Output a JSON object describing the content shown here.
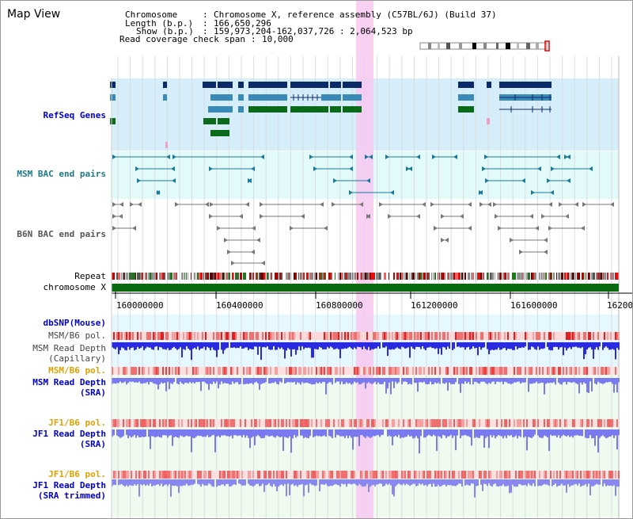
{
  "title": "Map View",
  "header": {
    "chromosome_key": "Chromosome",
    "chromosome_val": "Chromosome X, reference assembly (C57BL/6J) (Build 37)",
    "length_key": "Length (b.p.)",
    "length_val": "166,650,296",
    "show_key": "Show (b.p.)",
    "show_val": "159,973,204-162,037,726 : 2,064,523 bp",
    "coverage_key": "Read coverage check span",
    "coverage_val": "10,000"
  },
  "tracks": {
    "refseq": "RefSeq Genes",
    "msm_bac": "MSM BAC end pairs",
    "b6n_bac": "B6N BAC end pairs",
    "repeat": "Repeat",
    "chromosome": "chromosome X",
    "dbsnp": "dbSNP(Mouse)",
    "msm_b6_pol_1": "MSM/B6 pol.",
    "msm_read_depth_cap_1": "MSM Read Depth",
    "msm_read_depth_cap_2": "(Capillary)",
    "msm_b6_pol_2": "MSM/B6 pol.",
    "msm_read_depth_sra_1": "MSM Read Depth",
    "msm_read_depth_sra_2": "(SRA)",
    "jf1_b6_pol_1": "JF1/B6 pol.",
    "jf1_read_depth_sra_1": "JF1 Read Depth",
    "jf1_read_depth_sra_2": "(SRA)",
    "jf1_b6_pol_2": "JF1/B6 pol.",
    "jf1_read_depth_trim_1": "JF1 Read Depth",
    "jf1_read_depth_trim_2": "(SRA trimmed)"
  },
  "axis": {
    "ticks": [
      "160000000",
      "160400000",
      "160800000",
      "161200000",
      "161600000",
      "16200"
    ]
  },
  "colors": {
    "refseq_bg": "#d6eefa",
    "msm_bac_bg": "#e3fafa",
    "snp_bg": "#e6f8ff",
    "depth_bg": "#eefbee",
    "highlight": "#f6c8f0",
    "gene_dark": "#0a2a6a",
    "gene_mid": "#3a8ab8",
    "gene_green": "#0a6a1a",
    "bac_teal": "#1a7a9a",
    "bac_gray": "#777777",
    "chrom_green": "#0a6a10",
    "depth_blue": "#2a2ae0",
    "depth_light": "#7a7af0"
  }
}
